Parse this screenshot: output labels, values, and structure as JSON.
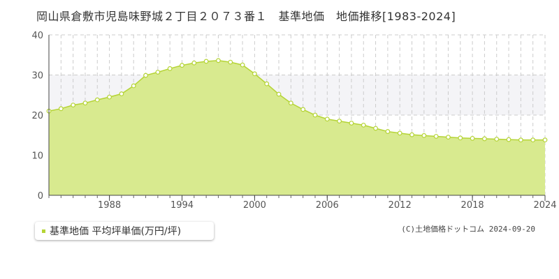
{
  "title": "岡山県倉敷市児島味野城２丁目２０７３番１　基準地価　地価推移[1983-2024]",
  "legend": {
    "label": "基準地価 平均坪単価(万円/坪)",
    "color": "#b5d435"
  },
  "copyright": "(C)土地価格ドットコム 2024-09-20",
  "chart_data": {
    "type": "area",
    "x": [
      1983,
      1984,
      1985,
      1986,
      1987,
      1988,
      1989,
      1990,
      1991,
      1992,
      1993,
      1994,
      1995,
      1996,
      1997,
      1998,
      1999,
      2000,
      2001,
      2002,
      2003,
      2004,
      2005,
      2006,
      2007,
      2008,
      2009,
      2010,
      2011,
      2012,
      2013,
      2014,
      2015,
      2016,
      2017,
      2018,
      2019,
      2020,
      2021,
      2022,
      2023,
      2024
    ],
    "series": [
      {
        "name": "基準地価 平均坪単価(万円/坪)",
        "values": [
          21.0,
          21.6,
          22.5,
          23.0,
          23.8,
          24.5,
          25.3,
          27.3,
          29.9,
          30.7,
          31.6,
          32.4,
          33.0,
          33.4,
          33.6,
          33.2,
          32.5,
          30.3,
          27.8,
          25.2,
          23.0,
          21.4,
          20.0,
          19.0,
          18.5,
          18.0,
          17.5,
          16.7,
          15.9,
          15.5,
          15.1,
          14.9,
          14.7,
          14.5,
          14.3,
          14.2,
          14.1,
          14.0,
          13.9,
          13.8,
          13.8,
          13.8
        ]
      }
    ],
    "x_ticks": [
      "1988",
      "1994",
      "2000",
      "2006",
      "2012",
      "2018",
      "2024"
    ],
    "y_ticks": [
      "0",
      "10",
      "20",
      "30",
      "40"
    ],
    "xlim": [
      1983,
      2024
    ],
    "ylim": [
      0,
      40
    ],
    "grid": true,
    "colors": {
      "fill": "#d8ea8f",
      "line": "#b5d435",
      "marker": "#ffffff",
      "band": "#f4f4f7",
      "grid": "#cccccc"
    }
  }
}
